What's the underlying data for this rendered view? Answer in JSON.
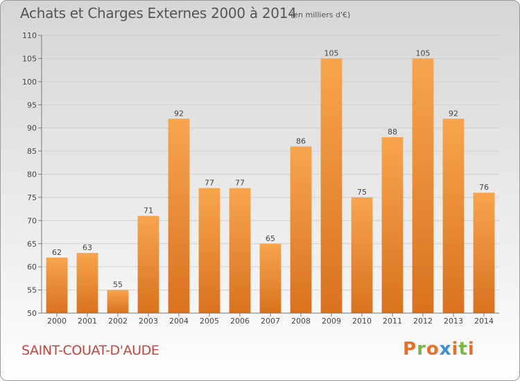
{
  "header": {
    "title": "Achats et Charges Externes 2000 à 2014",
    "subtitle": "(en milliers d'€)"
  },
  "footer": {
    "commune": "SAINT-COUAT-D'AUDE",
    "brand": "Proxiti",
    "brand_colors": [
      "#e8702a",
      "#7ab648",
      "#e8702a",
      "#3b8fd4",
      "#e8702a",
      "#7ab648",
      "#e8702a"
    ]
  },
  "colors": {
    "bar_top": "#f7a54d",
    "bar_bottom": "#d9721f",
    "commune_text": "#c8433a"
  },
  "chart_data": {
    "type": "bar",
    "title": "Achats et Charges Externes 2000 à 2014",
    "subtitle": "(en milliers d'€)",
    "categories": [
      "2000",
      "2001",
      "2002",
      "2003",
      "2004",
      "2005",
      "2006",
      "2007",
      "2008",
      "2009",
      "2010",
      "2011",
      "2012",
      "2013",
      "2014"
    ],
    "values": [
      62,
      63,
      55,
      71,
      92,
      77,
      77,
      65,
      86,
      105,
      75,
      88,
      105,
      92,
      76
    ],
    "ylim": [
      50,
      110
    ],
    "yticks": [
      50,
      55,
      60,
      65,
      70,
      75,
      80,
      85,
      90,
      95,
      100,
      105,
      110
    ],
    "grid": true,
    "xlabel": "",
    "ylabel": ""
  }
}
